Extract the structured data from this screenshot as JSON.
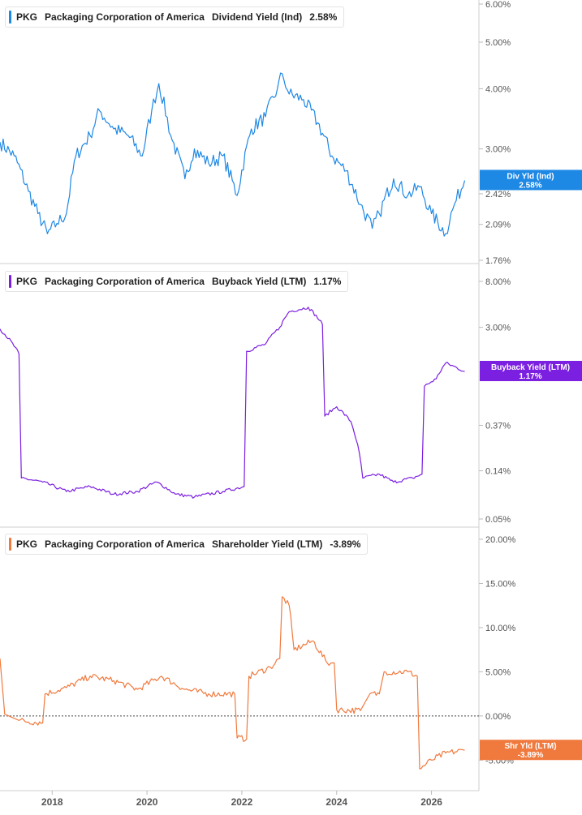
{
  "chart_data": [
    {
      "type": "line",
      "ticker": "PKG",
      "company": "Packaging Corporation of America",
      "metric": "Dividend Yield (Ind)",
      "value": "2.58%",
      "flag": [
        "Div Yld (Ind)",
        "2.58%"
      ],
      "color": "#1e88e5",
      "y_scale": "log",
      "ylim": [
        1.76,
        6.0
      ],
      "y_ticks": [
        1.76,
        2.09,
        2.42,
        3.0,
        4.0,
        5.0,
        6.0
      ],
      "y_tick_labels": [
        "1.76%",
        "2.09%",
        "2.42%",
        "3.00%",
        "4.00%",
        "5.00%",
        "6.00%"
      ],
      "points": [
        [
          2016.9,
          3.1
        ],
        [
          2017.2,
          2.9
        ],
        [
          2017.5,
          2.45
        ],
        [
          2017.7,
          2.2
        ],
        [
          2017.9,
          2.0
        ],
        [
          2018.1,
          2.1
        ],
        [
          2018.3,
          2.2
        ],
        [
          2018.5,
          2.9
        ],
        [
          2018.8,
          3.2
        ],
        [
          2019.0,
          3.6
        ],
        [
          2019.3,
          3.3
        ],
        [
          2019.6,
          3.2
        ],
        [
          2019.9,
          2.9
        ],
        [
          2020.1,
          3.6
        ],
        [
          2020.25,
          4.1
        ],
        [
          2020.5,
          3.2
        ],
        [
          2020.8,
          2.6
        ],
        [
          2021.0,
          3.0
        ],
        [
          2021.3,
          2.8
        ],
        [
          2021.6,
          2.9
        ],
        [
          2021.9,
          2.4
        ],
        [
          2022.2,
          3.3
        ],
        [
          2022.5,
          3.5
        ],
        [
          2022.75,
          4.0
        ],
        [
          2022.85,
          4.3
        ],
        [
          2023.0,
          3.9
        ],
        [
          2023.3,
          3.8
        ],
        [
          2023.6,
          3.4
        ],
        [
          2023.9,
          2.9
        ],
        [
          2024.2,
          2.7
        ],
        [
          2024.5,
          2.3
        ],
        [
          2024.75,
          2.05
        ],
        [
          2024.9,
          2.2
        ],
        [
          2025.2,
          2.6
        ],
        [
          2025.5,
          2.4
        ],
        [
          2025.75,
          2.5
        ],
        [
          2026.0,
          2.2
        ],
        [
          2026.3,
          2.0
        ],
        [
          2026.45,
          2.25
        ],
        [
          2026.7,
          2.58
        ]
      ]
    },
    {
      "type": "line",
      "ticker": "PKG",
      "company": "Packaging Corporation of America",
      "metric": "Buyback Yield (LTM)",
      "value": "1.17%",
      "flag": [
        "Buyback Yield (LTM)",
        "1.17%"
      ],
      "color": "#7b1fe0",
      "y_scale": "log",
      "ylim": [
        0.05,
        8.0
      ],
      "y_ticks": [
        0.05,
        0.14,
        0.37,
        3.0,
        8.0
      ],
      "y_tick_labels": [
        "0.05%",
        "0.14%",
        "0.37%",
        "3.00%",
        "8.00%"
      ],
      "points": [
        [
          2016.9,
          2.9
        ],
        [
          2017.3,
          1.7
        ],
        [
          2017.35,
          0.12
        ],
        [
          2017.8,
          0.11
        ],
        [
          2018.3,
          0.09
        ],
        [
          2018.8,
          0.1
        ],
        [
          2019.3,
          0.085
        ],
        [
          2019.8,
          0.09
        ],
        [
          2020.2,
          0.11
        ],
        [
          2020.6,
          0.085
        ],
        [
          2021.0,
          0.08
        ],
        [
          2021.6,
          0.09
        ],
        [
          2022.05,
          0.1
        ],
        [
          2022.1,
          1.8
        ],
        [
          2022.5,
          2.1
        ],
        [
          2022.8,
          3.0
        ],
        [
          2023.0,
          4.2
        ],
        [
          2023.4,
          4.6
        ],
        [
          2023.7,
          3.2
        ],
        [
          2023.75,
          0.45
        ],
        [
          2024.0,
          0.55
        ],
        [
          2024.3,
          0.4
        ],
        [
          2024.55,
          0.12
        ],
        [
          2024.9,
          0.13
        ],
        [
          2025.2,
          0.11
        ],
        [
          2025.6,
          0.12
        ],
        [
          2025.8,
          0.13
        ],
        [
          2025.85,
          0.85
        ],
        [
          2026.1,
          1.0
        ],
        [
          2026.3,
          1.4
        ],
        [
          2026.7,
          1.17
        ]
      ]
    },
    {
      "type": "line",
      "ticker": "PKG",
      "company": "Packaging Corporation of America",
      "metric": "Shareholder Yield (LTM)",
      "value": "-3.89%",
      "flag": [
        "Shr Yld (LTM)",
        "-3.89%"
      ],
      "color": "#f07a3e",
      "y_scale": "linear",
      "ylim": [
        -8.0,
        20.0
      ],
      "y_ticks": [
        -5.0,
        0.0,
        5.0,
        10.0,
        15.0,
        20.0
      ],
      "y_tick_labels": [
        "-5.00%",
        "0.00%",
        "5.00%",
        "10.00%",
        "15.00%",
        "20.00%"
      ],
      "zero_line": true,
      "points": [
        [
          2016.9,
          6.5
        ],
        [
          2017.0,
          0.2
        ],
        [
          2017.3,
          -0.5
        ],
        [
          2017.8,
          -0.8
        ],
        [
          2017.85,
          2.5
        ],
        [
          2018.3,
          3.2
        ],
        [
          2018.8,
          4.5
        ],
        [
          2019.3,
          4.0
        ],
        [
          2019.8,
          3.0
        ],
        [
          2020.3,
          4.5
        ],
        [
          2020.8,
          3.0
        ],
        [
          2021.3,
          2.5
        ],
        [
          2021.85,
          2.5
        ],
        [
          2021.9,
          -2.5
        ],
        [
          2022.1,
          -2.6
        ],
        [
          2022.15,
          4.5
        ],
        [
          2022.6,
          5.5
        ],
        [
          2022.8,
          6.5
        ],
        [
          2022.85,
          13.5
        ],
        [
          2023.0,
          12.5
        ],
        [
          2023.1,
          7.5
        ],
        [
          2023.5,
          8.5
        ],
        [
          2023.8,
          6.0
        ],
        [
          2023.95,
          6.0
        ],
        [
          2024.0,
          0.7
        ],
        [
          2024.5,
          0.6
        ],
        [
          2024.7,
          2.5
        ],
        [
          2024.9,
          2.5
        ],
        [
          2025.0,
          5.0
        ],
        [
          2025.5,
          5.0
        ],
        [
          2025.7,
          4.5
        ],
        [
          2025.75,
          -6.0
        ],
        [
          2026.0,
          -5.0
        ],
        [
          2026.3,
          -4.2
        ],
        [
          2026.7,
          -3.89
        ]
      ]
    }
  ],
  "x_axis": {
    "ticks": [
      2018,
      2020,
      2022,
      2024,
      2026
    ],
    "labels": [
      "2018",
      "2020",
      "2022",
      "2024",
      "2026"
    ],
    "range": [
      2016.9,
      2027.0
    ]
  }
}
